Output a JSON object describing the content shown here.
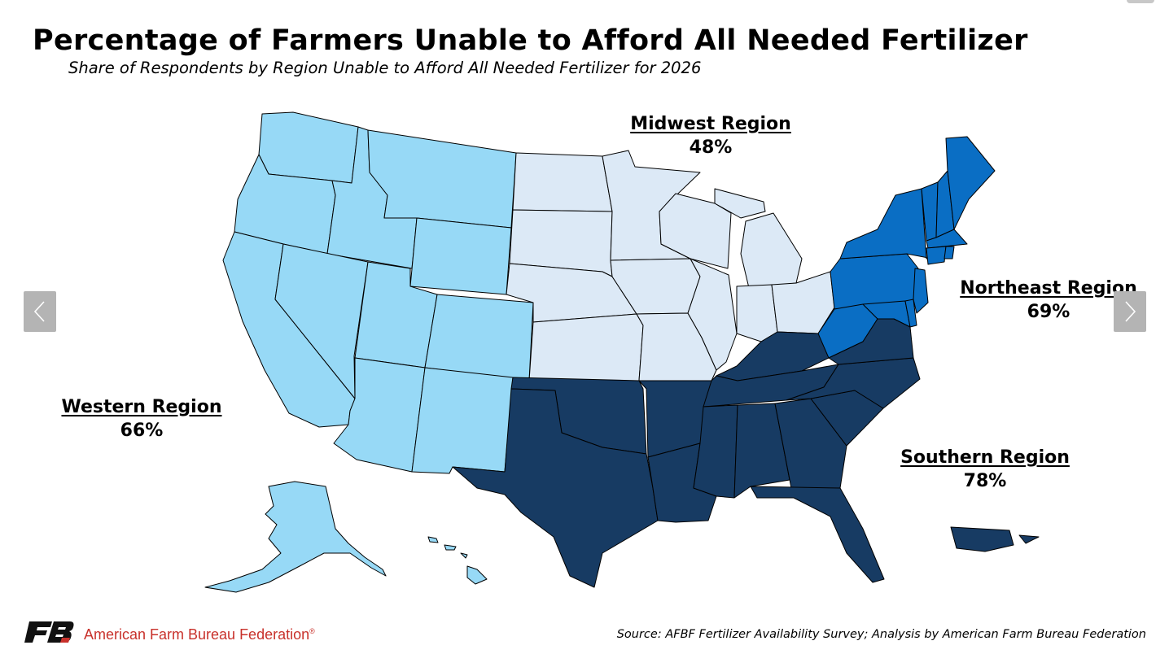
{
  "title": "Percentage of Farmers Unable to Afford All Needed Fertilizer",
  "subtitle": "Share of Respondents by Region Unable to Afford All Needed Fertilizer for 2026",
  "regions": {
    "midwest": {
      "name": "Midwest Region",
      "value": "48%",
      "color": "#dce9f6"
    },
    "northeast": {
      "name": "Northeast Region",
      "value": "69%",
      "color": "#0a6ec4"
    },
    "western": {
      "name": "Western Region",
      "value": "66%",
      "color": "#97d9f6"
    },
    "southern": {
      "name": "Southern Region",
      "value": "78%",
      "color": "#173b63"
    }
  },
  "footer": {
    "organization": "American Farm Bureau Federation",
    "source": "Source: AFBF Fertilizer Availability Survey; Analysis by American Farm Bureau Federation"
  },
  "navigation": {
    "prev_icon": "chevron-left-icon",
    "next_icon": "chevron-right-icon"
  },
  "logo_icon": "afbf-logo-icon"
}
